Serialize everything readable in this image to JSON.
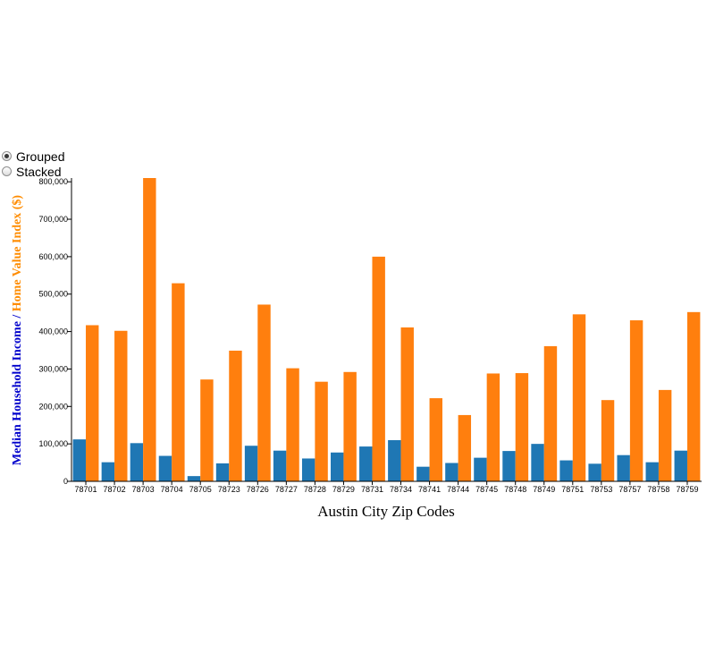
{
  "controls": {
    "options": [
      {
        "label": "Grouped",
        "checked": true
      },
      {
        "label": "Stacked",
        "checked": false
      }
    ]
  },
  "colors": {
    "income": "#1f77b4",
    "home_value": "#ff7f0e",
    "ylabel_income": "#0000cc",
    "ylabel_home_value": "#ff8c00"
  },
  "chart_data": {
    "type": "bar",
    "mode": "grouped",
    "xlabel": "Austin City Zip Codes",
    "ylabel_parts": [
      "Median Household Income",
      " / ",
      "Home Value Index ($)"
    ],
    "ylim": [
      0,
      810000
    ],
    "yticks": [
      0,
      100000,
      200000,
      300000,
      400000,
      500000,
      600000,
      700000,
      800000
    ],
    "ytick_labels": [
      "0",
      "100,000",
      "200,000",
      "300,000",
      "400,000",
      "500,000",
      "600,000",
      "700,000",
      "800,000"
    ],
    "categories": [
      "78701",
      "78702",
      "78703",
      "78704",
      "78705",
      "78723",
      "78726",
      "78727",
      "78728",
      "78729",
      "78731",
      "78734",
      "78741",
      "78744",
      "78745",
      "78748",
      "78749",
      "78751",
      "78753",
      "78757",
      "78758",
      "78759"
    ],
    "series": [
      {
        "key": "income",
        "values": [
          112000,
          51000,
          102000,
          68000,
          14000,
          48000,
          95000,
          82000,
          61000,
          77000,
          93000,
          110000,
          39000,
          49000,
          63000,
          81000,
          100000,
          56000,
          47000,
          70000,
          51000,
          82000
        ]
      },
      {
        "key": "home_value",
        "values": [
          417000,
          402000,
          810000,
          529000,
          272000,
          349000,
          472000,
          302000,
          266000,
          292000,
          600000,
          411000,
          222000,
          177000,
          288000,
          289000,
          361000,
          446000,
          217000,
          430000,
          244000,
          452000
        ]
      }
    ]
  }
}
